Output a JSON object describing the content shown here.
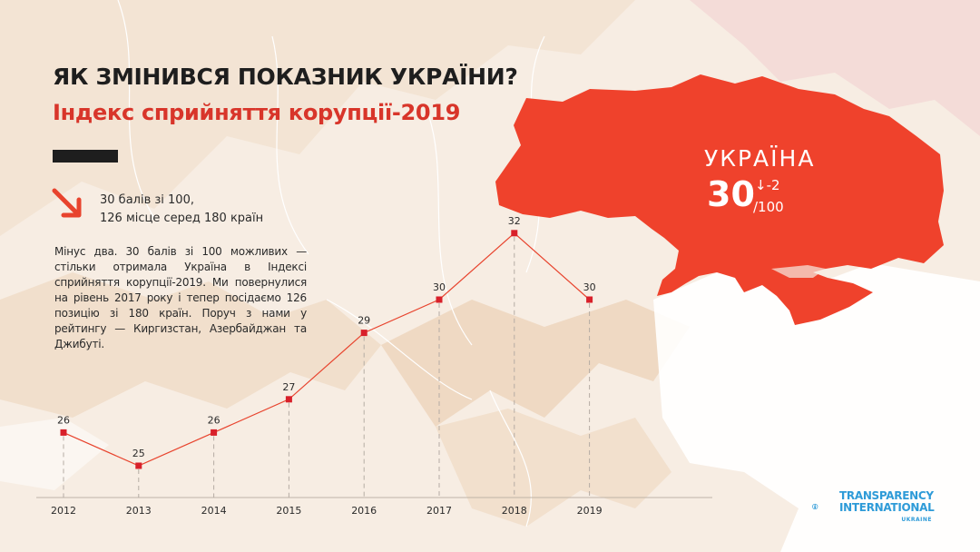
{
  "header": {
    "title": "ЯК ЗМІНИВСЯ ПОКАЗНИК УКРАЇНИ?",
    "subtitle": "Індекс сприйняття корупції-2019"
  },
  "summary": {
    "line1": "30 балів зі 100,",
    "line2": "126 місце серед 180 країн"
  },
  "description": "Мінус два. 30 балів зі 100 можливих — стільки отримала Україна в Індексі сприйняття корупції-2019. Ми повернулися на рівень 2017 року і тепер посідаємо 126 позицію зі 180 країн. Поруч з нами у рейтингу — Киргизстан, Азербайджан та Джибуті.",
  "map_label": {
    "country": "УКРАЇНА",
    "score": "30",
    "change": "↓-2",
    "max": "/100"
  },
  "logo": {
    "line1": "TRANSPARENCY",
    "line2": "INTERNATIONAL",
    "line3": "UKRAINE"
  },
  "colors": {
    "accent": "#e8432d",
    "text": "#1e1e1e",
    "logo": "#2e9bd8",
    "marker": "#d8202a"
  },
  "chart_data": {
    "type": "line",
    "x": [
      "2012",
      "2013",
      "2014",
      "2015",
      "2016",
      "2017",
      "2018",
      "2019"
    ],
    "values": [
      26,
      25,
      26,
      27,
      29,
      30,
      32,
      30
    ],
    "data_labels": [
      "26",
      "25",
      "26",
      "27",
      "29",
      "30",
      "32",
      "30"
    ],
    "grid": false,
    "legend": "none"
  }
}
